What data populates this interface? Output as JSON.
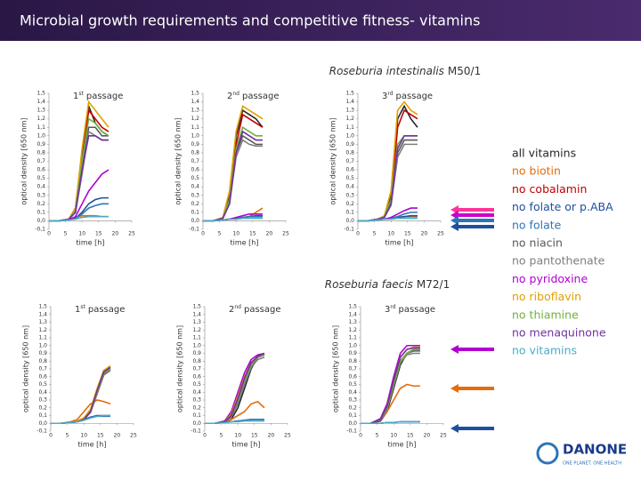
{
  "header": {
    "title": "Microbial growth requirements and competitive fitness-  vitamins"
  },
  "chart_data": {
    "type": "line",
    "x": [
      0,
      3,
      6,
      8,
      10,
      12,
      14,
      16,
      18
    ],
    "xlim": [
      0,
      25
    ],
    "xticks": [
      0,
      5,
      10,
      15,
      20,
      25
    ],
    "ylim": [
      -0.1,
      1.5
    ],
    "yticks": [
      {
        "value": -0.1,
        "label": "-0,1"
      },
      {
        "value": 0,
        "label": "0,0"
      },
      {
        "value": 0.1,
        "label": "0,1"
      },
      {
        "value": 0.2,
        "label": "0,2"
      },
      {
        "value": 0.3,
        "label": "0,3"
      },
      {
        "value": 0.4,
        "label": "0,4"
      },
      {
        "value": 0.5,
        "label": "0,5"
      },
      {
        "value": 0.6,
        "label": "0,6"
      },
      {
        "value": 0.7,
        "label": "0,7"
      },
      {
        "value": 0.8,
        "label": "0,8"
      },
      {
        "value": 0.9,
        "label": "0,9"
      },
      {
        "value": 1.0,
        "label": "1,0"
      },
      {
        "value": 1.1,
        "label": "1,1"
      },
      {
        "value": 1.2,
        "label": "1,2"
      },
      {
        "value": 1.3,
        "label": "1,3"
      },
      {
        "value": 1.4,
        "label": "1,4"
      },
      {
        "value": 1.5,
        "label": "1,5"
      }
    ],
    "ylabel": "optical density [650 nm]",
    "xlabel": "time [h]",
    "legend": [
      {
        "name": "all vitamins",
        "color": "#262626"
      },
      {
        "name": "no biotin",
        "color": "#e46c0a"
      },
      {
        "name": "no cobalamin",
        "color": "#c00000"
      },
      {
        "name": "no folate or p.ABA",
        "color": "#1f4e9e"
      },
      {
        "name": "no folate",
        "color": "#2e75b6"
      },
      {
        "name": "no niacin",
        "color": "#595959"
      },
      {
        "name": "no pantothenate",
        "color": "#7f7f7f"
      },
      {
        "name": "no pyridoxine",
        "color": "#b000d0"
      },
      {
        "name": "no riboflavin",
        "color": "#e0a000"
      },
      {
        "name": "no thiamine",
        "color": "#70b040"
      },
      {
        "name": "no menaquinone",
        "color": "#7030a0"
      },
      {
        "name": "no vitamins",
        "color": "#4bacc6"
      }
    ],
    "groups": [
      {
        "species": "Roseburia intestinalis",
        "strain": "M50/1",
        "panels": [
          {
            "title_parts": [
              "1",
              "st",
              "passage"
            ],
            "series": [
              [
                0,
                0,
                0.02,
                0.15,
                0.8,
                1.35,
                1.15,
                1.05,
                1.0
              ],
              [
                0,
                0,
                0.02,
                0.04,
                0.06,
                0.06,
                0.06,
                0.05,
                0.05
              ],
              [
                0,
                0,
                0.02,
                0.12,
                0.7,
                1.3,
                1.2,
                1.1,
                1.05
              ],
              [
                0,
                0,
                0.01,
                0.03,
                0.1,
                0.2,
                0.25,
                0.27,
                0.27
              ],
              [
                0,
                0,
                0.01,
                0.03,
                0.08,
                0.15,
                0.18,
                0.2,
                0.2
              ],
              [
                0,
                0,
                0.02,
                0.1,
                0.6,
                1.1,
                1.1,
                1.0,
                1.0
              ],
              [
                0,
                0,
                0.02,
                0.1,
                0.55,
                1.05,
                1.0,
                0.95,
                0.95
              ],
              [
                0,
                0,
                0.01,
                0.05,
                0.2,
                0.35,
                0.45,
                0.55,
                0.6
              ],
              [
                0,
                0,
                0.02,
                0.15,
                0.85,
                1.4,
                1.3,
                1.2,
                1.1
              ],
              [
                0,
                0,
                0.02,
                0.12,
                0.7,
                1.2,
                1.15,
                1.05,
                1.0
              ],
              [
                0,
                0,
                0.02,
                0.1,
                0.6,
                1.0,
                1.0,
                0.95,
                0.95
              ],
              [
                0,
                0,
                0.01,
                0.02,
                0.04,
                0.05,
                0.05,
                0.05,
                0.05
              ]
            ]
          },
          {
            "title_parts": [
              "2",
              "nd",
              "passage"
            ],
            "series": [
              [
                0,
                0,
                0.03,
                0.3,
                1.0,
                1.3,
                1.25,
                1.2,
                1.1
              ],
              [
                0,
                0,
                0.01,
                0.02,
                0.02,
                0.03,
                0.05,
                0.1,
                0.15
              ],
              [
                0,
                0,
                0.03,
                0.25,
                0.9,
                1.25,
                1.2,
                1.15,
                1.1
              ],
              [
                0,
                0,
                0.01,
                0.02,
                0.03,
                0.04,
                0.05,
                0.06,
                0.06
              ],
              [
                0,
                0,
                0.01,
                0.02,
                0.03,
                0.04,
                0.05,
                0.05,
                0.05
              ],
              [
                0,
                0,
                0.03,
                0.2,
                0.8,
                1.0,
                0.95,
                0.9,
                0.9
              ],
              [
                0,
                0,
                0.03,
                0.2,
                0.75,
                0.95,
                0.9,
                0.88,
                0.88
              ],
              [
                0,
                0,
                0.01,
                0.02,
                0.04,
                0.06,
                0.08,
                0.08,
                0.08
              ],
              [
                0,
                0,
                0.04,
                0.35,
                1.05,
                1.35,
                1.3,
                1.25,
                1.2
              ],
              [
                0,
                0,
                0.03,
                0.25,
                0.85,
                1.1,
                1.05,
                1.0,
                1.0
              ],
              [
                0,
                0,
                0.03,
                0.2,
                0.8,
                1.05,
                1.0,
                0.95,
                0.95
              ],
              [
                0,
                0,
                0.01,
                0.02,
                0.02,
                0.03,
                0.03,
                0.03,
                0.03
              ]
            ]
          },
          {
            "title_parts": [
              "3",
              "rd",
              "passage"
            ],
            "series": [
              [
                0,
                0,
                0.02,
                0.05,
                0.3,
                1.2,
                1.35,
                1.2,
                1.1
              ],
              [
                0,
                0,
                0.01,
                0.02,
                0.03,
                0.04,
                0.05,
                0.05,
                0.05
              ],
              [
                0,
                0,
                0.02,
                0.05,
                0.25,
                1.1,
                1.3,
                1.25,
                1.2
              ],
              [
                0,
                0,
                0.01,
                0.02,
                0.03,
                0.04,
                0.05,
                0.06,
                0.06
              ],
              [
                0,
                0,
                0.01,
                0.02,
                0.03,
                0.05,
                0.08,
                0.1,
                0.1
              ],
              [
                0,
                0,
                0.02,
                0.04,
                0.2,
                0.8,
                0.95,
                0.95,
                0.95
              ],
              [
                0,
                0,
                0.02,
                0.04,
                0.18,
                0.75,
                0.9,
                0.9,
                0.9
              ],
              [
                0,
                0,
                0.01,
                0.02,
                0.04,
                0.08,
                0.12,
                0.15,
                0.15
              ],
              [
                0,
                0,
                0.02,
                0.06,
                0.35,
                1.3,
                1.4,
                1.3,
                1.25
              ],
              [
                0,
                0,
                0.02,
                0.05,
                0.25,
                0.9,
                1.0,
                1.0,
                1.0
              ],
              [
                0,
                0,
                0.02,
                0.04,
                0.2,
                0.85,
                1.0,
                1.0,
                1.0
              ],
              [
                0,
                0,
                0.01,
                0.02,
                0.02,
                0.03,
                0.03,
                0.03,
                0.03
              ]
            ]
          }
        ]
      },
      {
        "species": "Roseburia faecis",
        "strain": "M72/1",
        "panels": [
          {
            "title_parts": [
              "1",
              "st",
              "passage"
            ],
            "series": [
              [
                0,
                0,
                0.01,
                0.02,
                0.05,
                0.15,
                0.4,
                0.65,
                0.7
              ],
              [
                0,
                0,
                0.02,
                0.05,
                0.15,
                0.25,
                0.3,
                0.28,
                0.25
              ],
              [
                0,
                0,
                0.01,
                0.02,
                0.05,
                0.14,
                0.38,
                0.62,
                0.68
              ],
              [
                0,
                0,
                0.01,
                0.02,
                0.05,
                0.08,
                0.1,
                0.1,
                0.1
              ],
              [
                0,
                0,
                0.01,
                0.02,
                0.04,
                0.07,
                0.09,
                0.09,
                0.09
              ],
              [
                0,
                0,
                0.01,
                0.02,
                0.05,
                0.15,
                0.4,
                0.63,
                0.7
              ],
              [
                0,
                0,
                0.01,
                0.02,
                0.05,
                0.14,
                0.38,
                0.62,
                0.68
              ],
              [
                0,
                0,
                0.01,
                0.02,
                0.06,
                0.17,
                0.43,
                0.68,
                0.72
              ],
              [
                0,
                0,
                0.01,
                0.03,
                0.07,
                0.18,
                0.45,
                0.68,
                0.74
              ],
              [
                0,
                0,
                0.01,
                0.02,
                0.05,
                0.15,
                0.4,
                0.65,
                0.7
              ],
              [
                0,
                0,
                0.01,
                0.02,
                0.05,
                0.15,
                0.42,
                0.66,
                0.72
              ],
              [
                0,
                0,
                0.01,
                0.02,
                0.04,
                0.07,
                0.09,
                0.1,
                0.1
              ]
            ]
          },
          {
            "title_parts": [
              "2",
              "nd",
              "passage"
            ],
            "series": [
              [
                0,
                0,
                0.01,
                0.05,
                0.2,
                0.45,
                0.7,
                0.85,
                0.88
              ],
              [
                0,
                0,
                0.02,
                0.05,
                0.1,
                0.15,
                0.25,
                0.28,
                0.2
              ],
              [
                0,
                0,
                0.02,
                0.08,
                0.28,
                0.55,
                0.75,
                0.85,
                0.88
              ],
              [
                0,
                0,
                0.01,
                0.02,
                0.03,
                0.04,
                0.05,
                0.05,
                0.05
              ],
              [
                0,
                0,
                0.01,
                0.02,
                0.03,
                0.04,
                0.05,
                0.05,
                0.05
              ],
              [
                0,
                0,
                0.02,
                0.1,
                0.3,
                0.55,
                0.75,
                0.85,
                0.88
              ],
              [
                0,
                0,
                0.02,
                0.08,
                0.25,
                0.5,
                0.72,
                0.82,
                0.85
              ],
              [
                0,
                0,
                0.03,
                0.15,
                0.4,
                0.65,
                0.82,
                0.88,
                0.9
              ],
              [
                0,
                0,
                0.02,
                0.12,
                0.35,
                0.6,
                0.78,
                0.86,
                0.9
              ],
              [
                0,
                0,
                0.02,
                0.1,
                0.3,
                0.55,
                0.75,
                0.85,
                0.88
              ],
              [
                0,
                0,
                0.02,
                0.1,
                0.32,
                0.58,
                0.78,
                0.86,
                0.9
              ],
              [
                0,
                0,
                0.01,
                0.02,
                0.02,
                0.03,
                0.03,
                0.03,
                0.03
              ]
            ]
          },
          {
            "title_parts": [
              "3",
              "rd",
              "passage"
            ],
            "series": [
              [
                0,
                0,
                0.03,
                0.15,
                0.45,
                0.75,
                0.9,
                0.95,
                0.95
              ],
              [
                0,
                0,
                0.04,
                0.15,
                0.3,
                0.45,
                0.5,
                0.48,
                0.48
              ],
              [
                0,
                0,
                0.04,
                0.18,
                0.5,
                0.8,
                0.9,
                0.95,
                0.95
              ],
              [
                0,
                0,
                0,
                0.01,
                0.01,
                0.02,
                0.02,
                0.02,
                0.02
              ],
              [
                0,
                0,
                0,
                0.01,
                0.01,
                0.02,
                0.02,
                0.02,
                0.02
              ],
              [
                0,
                0,
                0.04,
                0.2,
                0.5,
                0.8,
                0.9,
                0.93,
                0.93
              ],
              [
                0,
                0,
                0.04,
                0.18,
                0.48,
                0.78,
                0.88,
                0.9,
                0.9
              ],
              [
                0,
                0,
                0.06,
                0.25,
                0.6,
                0.9,
                1.0,
                1.0,
                1.0
              ],
              [
                0,
                0,
                0.05,
                0.22,
                0.55,
                0.85,
                0.95,
                0.98,
                0.98
              ],
              [
                0,
                0,
                0.05,
                0.2,
                0.5,
                0.8,
                0.9,
                0.95,
                0.95
              ],
              [
                0,
                0,
                0.05,
                0.22,
                0.55,
                0.85,
                0.95,
                0.97,
                0.97
              ],
              [
                0,
                0,
                0,
                0.01,
                0.01,
                0.02,
                0.02,
                0.02,
                0.02
              ]
            ]
          }
        ]
      }
    ]
  },
  "logo": {
    "name": "DANONE",
    "tagline": "ONE PLANET. ONE HEALTH"
  }
}
